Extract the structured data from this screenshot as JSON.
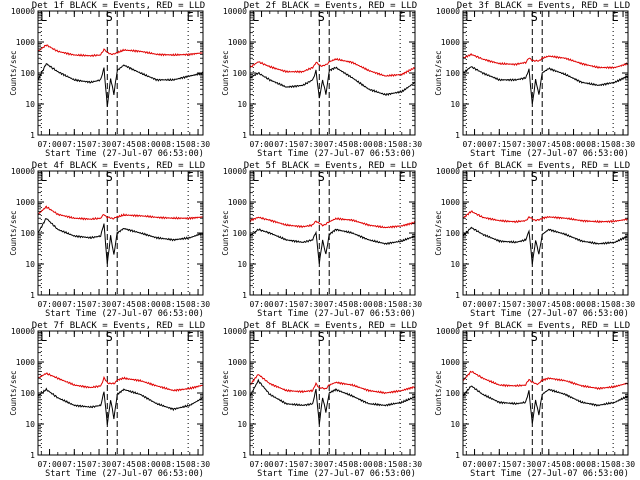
{
  "chart_data": {
    "type": "line",
    "y_scale": "log",
    "ylim": [
      1,
      10000
    ],
    "y_tick_labels": [
      "1",
      "10",
      "100",
      "1000",
      "10000"
    ],
    "x_range": [
      "06:53:00",
      "08:33:00"
    ],
    "x_tick_labels": [
      "07:00",
      "07:15",
      "07:30",
      "07:45",
      "08:00",
      "08:15",
      "08:30"
    ],
    "xlabel": "Start Time (27-Jul-07 06:53:00)",
    "ylabel": "Counts/sec",
    "colors": {
      "events": "#000000",
      "lld": "#e00000"
    },
    "markers": [
      {
        "label": "E",
        "time": "06:55",
        "style": "dotted"
      },
      {
        "label": "S",
        "time": "07:35",
        "style": "dashed"
      },
      {
        "label": "L",
        "time": "08:24",
        "style": "dotted"
      }
    ],
    "extra_dashed_line_time": "07:41",
    "panels": [
      {
        "title": "Det 1f BLACK = Events, RED = LLD",
        "markers": [
          "L",
          "S",
          "E"
        ],
        "series": [
          {
            "name": "Events",
            "color": "black",
            "x": [
              "06:53",
              "06:58",
              "07:05",
              "07:15",
              "07:25",
              "07:31",
              "07:33",
              "07:35",
              "07:37",
              "07:39",
              "07:41",
              "07:45",
              "07:55",
              "08:05",
              "08:15",
              "08:25",
              "08:33"
            ],
            "y": [
              60,
              200,
              110,
              60,
              50,
              60,
              150,
              8,
              70,
              20,
              120,
              180,
              100,
              60,
              60,
              80,
              100
            ]
          },
          {
            "name": "LLD",
            "color": "red",
            "x": [
              "06:53",
              "06:58",
              "07:05",
              "07:15",
              "07:25",
              "07:31",
              "07:33",
              "07:35",
              "07:37",
              "07:39",
              "07:41",
              "07:45",
              "07:55",
              "08:05",
              "08:15",
              "08:25",
              "08:33"
            ],
            "y": [
              500,
              800,
              500,
              380,
              360,
              380,
              600,
              450,
              420,
              400,
              450,
              550,
              500,
              400,
              380,
              400,
              450
            ]
          }
        ]
      },
      {
        "title": "Det 2f BLACK = Events, RED = LLD",
        "markers": [
          "L",
          "S",
          "E"
        ],
        "series": [
          {
            "name": "Events",
            "color": "black",
            "x": [
              "06:53",
              "06:58",
              "07:05",
              "07:15",
              "07:25",
              "07:31",
              "07:33",
              "07:35",
              "07:37",
              "07:39",
              "07:41",
              "07:45",
              "07:55",
              "08:05",
              "08:15",
              "08:25",
              "08:33"
            ],
            "y": [
              70,
              100,
              60,
              35,
              40,
              60,
              120,
              15,
              60,
              20,
              120,
              150,
              70,
              30,
              20,
              25,
              50
            ]
          },
          {
            "name": "LLD",
            "color": "red",
            "x": [
              "06:53",
              "06:58",
              "07:05",
              "07:15",
              "07:25",
              "07:31",
              "07:33",
              "07:35",
              "07:37",
              "07:39",
              "07:41",
              "07:45",
              "07:55",
              "08:05",
              "08:15",
              "08:25",
              "08:33"
            ],
            "y": [
              150,
              230,
              160,
              110,
              110,
              150,
              220,
              180,
              170,
              180,
              230,
              280,
              220,
              120,
              80,
              90,
              150
            ]
          }
        ]
      },
      {
        "title": "Det 3f BLACK = Events, RED = LLD",
        "markers": [
          "L",
          "S",
          "E"
        ],
        "series": [
          {
            "name": "Events",
            "color": "black",
            "x": [
              "06:53",
              "06:58",
              "07:05",
              "07:15",
              "07:25",
              "07:31",
              "07:33",
              "07:35",
              "07:37",
              "07:39",
              "07:41",
              "07:45",
              "07:55",
              "08:05",
              "08:15",
              "08:25",
              "08:33"
            ],
            "y": [
              100,
              160,
              100,
              60,
              60,
              70,
              130,
              10,
              60,
              20,
              100,
              140,
              90,
              50,
              40,
              50,
              80
            ]
          },
          {
            "name": "LLD",
            "color": "red",
            "x": [
              "06:53",
              "06:58",
              "07:05",
              "07:15",
              "07:25",
              "07:31",
              "07:33",
              "07:35",
              "07:37",
              "07:39",
              "07:41",
              "07:45",
              "07:55",
              "08:05",
              "08:15",
              "08:25",
              "08:33"
            ],
            "y": [
              300,
              400,
              280,
              200,
              190,
              220,
              300,
              260,
              240,
              250,
              300,
              350,
              300,
              200,
              150,
              150,
              200
            ]
          }
        ]
      },
      {
        "title": "Det 4f BLACK = Events, RED = LLD",
        "markers": [
          "L",
          "S",
          "E"
        ],
        "series": [
          {
            "name": "Events",
            "color": "black",
            "x": [
              "06:53",
              "06:58",
              "07:05",
              "07:15",
              "07:25",
              "07:31",
              "07:33",
              "07:35",
              "07:37",
              "07:39",
              "07:41",
              "07:45",
              "07:55",
              "08:05",
              "08:15",
              "08:25",
              "08:33"
            ],
            "y": [
              100,
              300,
              130,
              80,
              70,
              80,
              200,
              10,
              80,
              20,
              100,
              140,
              100,
              70,
              60,
              70,
              100
            ]
          },
          {
            "name": "LLD",
            "color": "red",
            "x": [
              "06:53",
              "06:58",
              "07:05",
              "07:15",
              "07:25",
              "07:31",
              "07:33",
              "07:35",
              "07:37",
              "07:39",
              "07:41",
              "07:45",
              "07:55",
              "08:05",
              "08:15",
              "08:25",
              "08:33"
            ],
            "y": [
              400,
              700,
              400,
              300,
              280,
              300,
              400,
              320,
              300,
              300,
              330,
              380,
              360,
              320,
              300,
              300,
              330
            ]
          }
        ]
      },
      {
        "title": "Det 5f BLACK = Events, RED = LLD",
        "markers": [
          "L",
          "S",
          "E"
        ],
        "series": [
          {
            "name": "Events",
            "color": "black",
            "x": [
              "06:53",
              "06:58",
              "07:05",
              "07:15",
              "07:25",
              "07:31",
              "07:33",
              "07:35",
              "07:37",
              "07:39",
              "07:41",
              "07:45",
              "07:55",
              "08:05",
              "08:15",
              "08:25",
              "08:33"
            ],
            "y": [
              80,
              130,
              100,
              60,
              50,
              60,
              110,
              10,
              60,
              20,
              90,
              130,
              100,
              60,
              45,
              55,
              80
            ]
          },
          {
            "name": "LLD",
            "color": "red",
            "x": [
              "06:53",
              "06:58",
              "07:05",
              "07:15",
              "07:25",
              "07:31",
              "07:33",
              "07:35",
              "07:37",
              "07:39",
              "07:41",
              "07:45",
              "07:55",
              "08:05",
              "08:15",
              "08:25",
              "08:33"
            ],
            "y": [
              250,
              320,
              260,
              180,
              160,
              180,
              250,
              200,
              180,
              190,
              230,
              290,
              260,
              180,
              150,
              170,
              220
            ]
          }
        ]
      },
      {
        "title": "Det 6f BLACK = Events, RED = LLD",
        "markers": [
          "L",
          "S",
          "E"
        ],
        "series": [
          {
            "name": "Events",
            "color": "black",
            "x": [
              "06:53",
              "06:58",
              "07:05",
              "07:15",
              "07:25",
              "07:31",
              "07:33",
              "07:35",
              "07:37",
              "07:39",
              "07:41",
              "07:45",
              "07:55",
              "08:05",
              "08:15",
              "08:25",
              "08:33"
            ],
            "y": [
              80,
              150,
              90,
              55,
              50,
              60,
              120,
              10,
              60,
              20,
              90,
              130,
              90,
              55,
              45,
              50,
              80
            ]
          },
          {
            "name": "LLD",
            "color": "red",
            "x": [
              "06:53",
              "06:58",
              "07:05",
              "07:15",
              "07:25",
              "07:31",
              "07:33",
              "07:35",
              "07:37",
              "07:39",
              "07:41",
              "07:45",
              "07:55",
              "08:05",
              "08:15",
              "08:25",
              "08:33"
            ],
            "y": [
              300,
              500,
              320,
              250,
              230,
              250,
              330,
              280,
              260,
              260,
              300,
              330,
              300,
              250,
              230,
              240,
              280
            ]
          }
        ]
      },
      {
        "title": "Det 7f BLACK = Events, RED = LLD",
        "markers": [
          "L",
          "S",
          "E"
        ],
        "series": [
          {
            "name": "Events",
            "color": "black",
            "x": [
              "06:53",
              "06:58",
              "07:05",
              "07:15",
              "07:25",
              "07:31",
              "07:33",
              "07:35",
              "07:37",
              "07:39",
              "07:41",
              "07:45",
              "07:55",
              "08:05",
              "08:15",
              "08:25",
              "08:33"
            ],
            "y": [
              80,
              130,
              70,
              40,
              35,
              40,
              110,
              10,
              60,
              15,
              90,
              130,
              90,
              45,
              30,
              40,
              70
            ]
          },
          {
            "name": "LLD",
            "color": "red",
            "x": [
              "06:53",
              "06:58",
              "07:05",
              "07:15",
              "07:25",
              "07:31",
              "07:33",
              "07:35",
              "07:37",
              "07:39",
              "07:41",
              "07:45",
              "07:55",
              "08:05",
              "08:15",
              "08:25",
              "08:33"
            ],
            "y": [
              300,
              430,
              300,
              180,
              150,
              170,
              300,
              220,
              200,
              200,
              260,
              300,
              250,
              170,
              120,
              140,
              180
            ]
          }
        ]
      },
      {
        "title": "Det 8f BLACK = Events, RED = LLD",
        "markers": [
          "L",
          "S",
          "E"
        ],
        "series": [
          {
            "name": "Events",
            "color": "black",
            "x": [
              "06:53",
              "06:58",
              "07:05",
              "07:15",
              "07:25",
              "07:31",
              "07:33",
              "07:35",
              "07:37",
              "07:39",
              "07:41",
              "07:45",
              "07:55",
              "08:05",
              "08:15",
              "08:25",
              "08:33"
            ],
            "y": [
              80,
              250,
              90,
              45,
              40,
              45,
              130,
              10,
              70,
              25,
              100,
              130,
              80,
              45,
              40,
              50,
              75
            ]
          },
          {
            "name": "LLD",
            "color": "red",
            "x": [
              "06:53",
              "06:58",
              "07:05",
              "07:15",
              "07:25",
              "07:31",
              "07:33",
              "07:35",
              "07:37",
              "07:39",
              "07:41",
              "07:45",
              "07:55",
              "08:05",
              "08:15",
              "08:25",
              "08:33"
            ],
            "y": [
              180,
              400,
              200,
              120,
              110,
              120,
              200,
              150,
              140,
              140,
              180,
              220,
              180,
              120,
              100,
              120,
              160
            ]
          }
        ]
      },
      {
        "title": "Det 9f BLACK = Events, RED = LLD",
        "markers": [
          "L",
          "S",
          "E"
        ],
        "series": [
          {
            "name": "Events",
            "color": "black",
            "x": [
              "06:53",
              "06:58",
              "07:05",
              "07:15",
              "07:25",
              "07:31",
              "07:33",
              "07:35",
              "07:37",
              "07:39",
              "07:41",
              "07:45",
              "07:55",
              "08:05",
              "08:15",
              "08:25",
              "08:33"
            ],
            "y": [
              80,
              170,
              90,
              50,
              45,
              50,
              120,
              10,
              60,
              20,
              90,
              130,
              90,
              50,
              40,
              50,
              80
            ]
          },
          {
            "name": "LLD",
            "color": "red",
            "x": [
              "06:53",
              "06:58",
              "07:05",
              "07:15",
              "07:25",
              "07:31",
              "07:33",
              "07:35",
              "07:37",
              "07:39",
              "07:41",
              "07:45",
              "07:55",
              "08:05",
              "08:15",
              "08:25",
              "08:33"
            ],
            "y": [
              250,
              500,
              300,
              180,
              170,
              180,
              280,
              220,
              200,
              200,
              260,
              300,
              250,
              170,
              140,
              160,
              210
            ]
          }
        ]
      }
    ]
  }
}
